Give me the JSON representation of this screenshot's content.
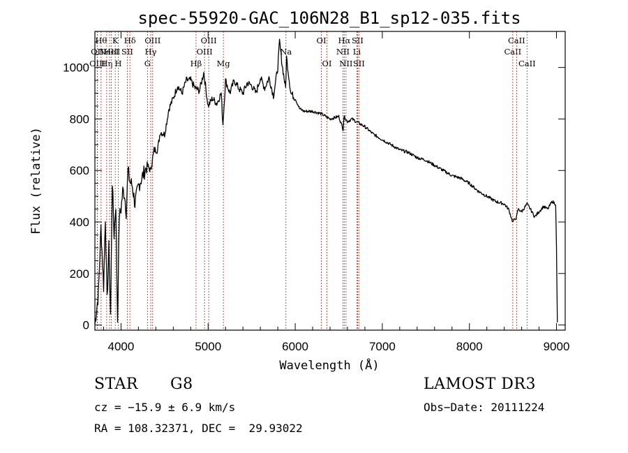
{
  "chart_data": {
    "type": "line",
    "title": "spec-55920-GAC_106N28_B1_sp12-035.fits",
    "xlabel": "Wavelength (Å)",
    "ylabel": "Flux (relative)",
    "xlim": [
      3700,
      9100
    ],
    "ylim": [
      -20,
      1140
    ],
    "x_ticks": [
      4000,
      5000,
      6000,
      7000,
      8000,
      9000
    ],
    "y_ticks": [
      0,
      200,
      400,
      600,
      800,
      1000
    ],
    "grid": false,
    "series": [
      {
        "x": [
          3700,
          3740,
          3770,
          3800,
          3820,
          3840,
          3860,
          3880,
          3900,
          3920,
          3940,
          3960,
          3980,
          4000,
          4020,
          4040,
          4060,
          4080,
          4100,
          4130,
          4160,
          4200,
          4250,
          4300,
          4340,
          4380,
          4420,
          4450,
          4500,
          4550,
          4600,
          4650,
          4700,
          4750,
          4800,
          4850,
          4900,
          4950,
          5000,
          5050,
          5100,
          5150,
          5170,
          5200,
          5250,
          5300,
          5350,
          5400,
          5450,
          5500,
          5550,
          5600,
          5650,
          5700,
          5750,
          5800,
          5820,
          5850,
          5890,
          5900,
          5950,
          6000,
          6050,
          6100,
          6200,
          6300,
          6400,
          6500,
          6550,
          6560,
          6600,
          6650,
          6700,
          6800,
          6900,
          7000,
          7100,
          7200,
          7300,
          7400,
          7500,
          7600,
          7700,
          7800,
          7900,
          8000,
          8100,
          8200,
          8300,
          8400,
          8450,
          8498,
          8542,
          8560,
          8600,
          8662,
          8700,
          8750,
          8800,
          8850,
          8900,
          8950,
          8990,
          9000,
          9010
        ],
        "y": [
          5,
          120,
          380,
          150,
          420,
          90,
          300,
          40,
          560,
          350,
          470,
          20,
          420,
          450,
          520,
          510,
          440,
          600,
          560,
          540,
          470,
          540,
          580,
          620,
          600,
          680,
          680,
          750,
          740,
          840,
          880,
          930,
          900,
          950,
          950,
          920,
          910,
          980,
          850,
          880,
          860,
          900,
          780,
          950,
          900,
          950,
          920,
          900,
          940,
          930,
          900,
          960,
          920,
          960,
          890,
          1000,
          1100,
          1010,
          920,
          1040,
          900,
          880,
          840,
          830,
          830,
          820,
          800,
          810,
          760,
          810,
          790,
          800,
          790,
          770,
          740,
          720,
          700,
          680,
          670,
          650,
          640,
          620,
          600,
          580,
          570,
          550,
          520,
          500,
          480,
          470,
          450,
          400,
          420,
          450,
          440,
          470,
          450,
          420,
          440,
          460,
          450,
          480,
          470,
          300,
          10
        ]
      }
    ],
    "line_markers": [
      {
        "w": 3727,
        "label": "OII",
        "row": 2
      },
      {
        "w": 3729,
        "label": "OIII",
        "row": 3
      },
      {
        "w": 3771,
        "label": "Hθ",
        "row": 1
      },
      {
        "w": 3835,
        "label": "Hη",
        "row": 3
      },
      {
        "w": 3869,
        "label": "NeIII",
        "row": 2
      },
      {
        "w": 3889,
        "label": "HeI",
        "row": 2
      },
      {
        "w": 3934,
        "label": "K",
        "row": 1
      },
      {
        "w": 3969,
        "label": "H",
        "row": 3
      },
      {
        "w": 4072,
        "label": "SII",
        "row": 2
      },
      {
        "w": 4102,
        "label": "Hδ",
        "row": 1
      },
      {
        "w": 4304,
        "label": "G",
        "row": 3
      },
      {
        "w": 4341,
        "label": "Hγ",
        "row": 2
      },
      {
        "w": 4363,
        "label": "OIII",
        "row": 1
      },
      {
        "w": 4861,
        "label": "Hβ",
        "row": 3
      },
      {
        "w": 4959,
        "label": "OIII",
        "row": 2
      },
      {
        "w": 5007,
        "label": "OIII",
        "row": 1
      },
      {
        "w": 5175,
        "label": "Mg",
        "row": 3
      },
      {
        "w": 5893,
        "label": "Na",
        "row": 2
      },
      {
        "w": 6300,
        "label": "OI",
        "row": 1
      },
      {
        "w": 6364,
        "label": "OI",
        "row": 3
      },
      {
        "w": 6548,
        "label": "NII",
        "row": 2
      },
      {
        "w": 6563,
        "label": "Hα",
        "row": 1
      },
      {
        "w": 6583,
        "label": "NII",
        "row": 3
      },
      {
        "w": 6708,
        "label": "Li",
        "row": 2
      },
      {
        "w": 6716,
        "label": "SII",
        "row": 1
      },
      {
        "w": 6731,
        "label": "SII",
        "row": 3
      },
      {
        "w": 8498,
        "label": "CaII",
        "row": 2
      },
      {
        "w": 8542,
        "label": "CaII",
        "row": 1
      },
      {
        "w": 8662,
        "label": "CaII",
        "row": 3
      }
    ]
  },
  "info": {
    "class": "STAR",
    "subclass": "G8",
    "survey": "LAMOST DR3",
    "cz": "cz = −15.9 ± 6.9 km/s",
    "obs_date": "Obs−Date: 20111224",
    "coords": "RA = 108.32371, DEC =  29.93022"
  },
  "colors": {
    "spectrum": "#000000",
    "marker_line": "#c0392b",
    "axes": "#000000"
  }
}
